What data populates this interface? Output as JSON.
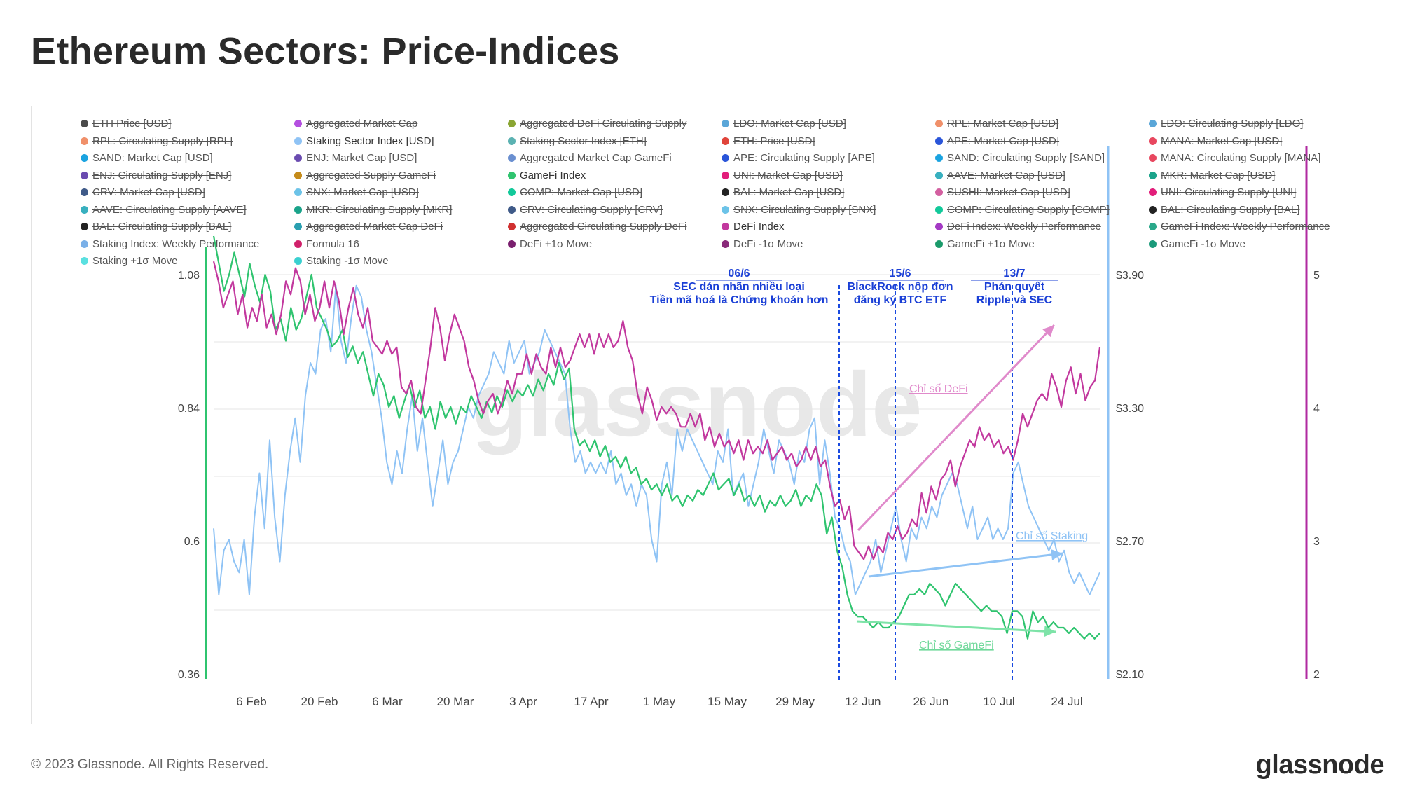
{
  "title": "Ethereum Sectors: Price-Indices",
  "footer": "© 2023 Glassnode. All Rights Reserved.",
  "brand": "glassnode",
  "watermark": "glassnode",
  "legend": [
    {
      "label": "ETH Price [USD]",
      "color": "#4a4a4a",
      "active": false
    },
    {
      "label": "Aggregated Market Cap",
      "color": "#b44fe0",
      "active": false
    },
    {
      "label": "Aggregated DeFi Circulating Supply",
      "color": "#8aa532",
      "active": false
    },
    {
      "label": "LDO: Market Cap [USD]",
      "color": "#5aa6d8",
      "active": false
    },
    {
      "label": "RPL: Market Cap [USD]",
      "color": "#f0906a",
      "active": false
    },
    {
      "label": "LDO: Circulating Supply [LDO]",
      "color": "#5aa6d8",
      "active": false
    },
    {
      "label": "RPL: Circulating Supply [RPL]",
      "color": "#f0906a",
      "active": false
    },
    {
      "label": "Staking Sector Index [USD]",
      "color": "#8fc3f5",
      "active": true
    },
    {
      "label": "Staking Sector Index [ETH]",
      "color": "#5bb2b2",
      "active": false
    },
    {
      "label": "ETH: Price [USD]",
      "color": "#e0443a",
      "active": false
    },
    {
      "label": "APE: Market Cap [USD]",
      "color": "#2a55d9",
      "active": false
    },
    {
      "label": "MANA: Market Cap [USD]",
      "color": "#e8475f",
      "active": false
    },
    {
      "label": "SAND: Market Cap [USD]",
      "color": "#1aa3e0",
      "active": false
    },
    {
      "label": "ENJ: Market Cap [USD]",
      "color": "#6a4bb0",
      "active": false
    },
    {
      "label": "Aggregated Market Cap GameFi",
      "color": "#6a8fd0",
      "active": false
    },
    {
      "label": "APE: Circulating Supply [APE]",
      "color": "#2a55d9",
      "active": false
    },
    {
      "label": "SAND: Circulating Supply [SAND]",
      "color": "#1aa3e0",
      "active": false
    },
    {
      "label": "MANA: Circulating Supply [MANA]",
      "color": "#e8475f",
      "active": false
    },
    {
      "label": "ENJ: Circulating Supply [ENJ]",
      "color": "#6a4bb0",
      "active": false
    },
    {
      "label": "Aggregated Supply GameFi",
      "color": "#c58b1a",
      "active": false
    },
    {
      "label": "GameFi Index",
      "color": "#2fc46f",
      "active": true
    },
    {
      "label": "UNI: Market Cap [USD]",
      "color": "#e21d7a",
      "active": false
    },
    {
      "label": "AAVE: Market Cap [USD]",
      "color": "#38b0bf",
      "active": false
    },
    {
      "label": "MKR: Market Cap [USD]",
      "color": "#1aa38a",
      "active": false
    },
    {
      "label": "CRV: Market Cap [USD]",
      "color": "#3f5a88",
      "active": false
    },
    {
      "label": "SNX: Market Cap [USD]",
      "color": "#6cc3e8",
      "active": false
    },
    {
      "label": "COMP: Market Cap [USD]",
      "color": "#12c99a",
      "active": false
    },
    {
      "label": "BAL: Market Cap [USD]",
      "color": "#222222",
      "active": false
    },
    {
      "label": "SUSHI: Market Cap [USD]",
      "color": "#d35fa0",
      "active": false
    },
    {
      "label": "UNI: Circulating Supply [UNI]",
      "color": "#e21d7a",
      "active": false
    },
    {
      "label": "AAVE: Circulating Supply [AAVE]",
      "color": "#38b0bf",
      "active": false
    },
    {
      "label": "MKR: Circulating Supply [MKR]",
      "color": "#1aa38a",
      "active": false
    },
    {
      "label": "CRV: Circulating Supply [CRV]",
      "color": "#3f5a88",
      "active": false
    },
    {
      "label": "SNX: Circulating Supply [SNX]",
      "color": "#6cc3e8",
      "active": false
    },
    {
      "label": "COMP: Circulating Supply [COMP]",
      "color": "#12c99a",
      "active": false
    },
    {
      "label": "BAL: Circulating Supply [BAL]",
      "color": "#222222",
      "active": false
    },
    {
      "label": "BAL: Circulating Supply [BAL]",
      "color": "#222222",
      "active": false
    },
    {
      "label": "Aggregated Market Cap DeFi",
      "color": "#2a9fb0",
      "active": false
    },
    {
      "label": "Aggregated Circulating Supply DeFi",
      "color": "#d03030",
      "active": false
    },
    {
      "label": "DeFi Index",
      "color": "#c2389e",
      "active": true
    },
    {
      "label": "DeFi Index: Weekly Performance",
      "color": "#a43ac4",
      "active": false
    },
    {
      "label": "GameFi Index: Weekly Performance",
      "color": "#2aa88a",
      "active": false
    },
    {
      "label": "Staking Index: Weekly Performance",
      "color": "#7ab0e8",
      "active": false
    },
    {
      "label": "Formula 16",
      "color": "#d0206a",
      "active": false
    },
    {
      "label": "DeFi +1σ Move",
      "color": "#7a1f6e",
      "active": false
    },
    {
      "label": "DeFi -1σ Move",
      "color": "#8a2a7a",
      "active": false
    },
    {
      "label": "GameFi +1σ Move",
      "color": "#1a9a6a",
      "active": false
    },
    {
      "label": "GameFi -1σ Move",
      "color": "#1a9a7a",
      "active": false
    },
    {
      "label": "Staking +1σ Move",
      "color": "#5ae0e0",
      "active": false
    },
    {
      "label": "Staking -1σ Move",
      "color": "#3ad0d0",
      "active": false
    }
  ],
  "chart_data": {
    "type": "line",
    "x_ticks": [
      "6 Feb",
      "20 Feb",
      "6 Mar",
      "20 Mar",
      "3 Apr",
      "17 Apr",
      "1 May",
      "15 May",
      "29 May",
      "12 Jun",
      "26 Jun",
      "10 Jul",
      "24 Jul"
    ],
    "left_axis": {
      "ticks": [
        "1.08",
        "0.84",
        "0.6",
        "0.36"
      ],
      "range": [
        0.36,
        1.08
      ]
    },
    "right_axis_1": {
      "ticks": [
        "$3.90",
        "$3.30",
        "$2.70",
        "$2.10"
      ],
      "range": [
        2.1,
        3.9
      ]
    },
    "right_axis_2": {
      "ticks": [
        "5",
        "4",
        "3",
        "2"
      ],
      "range": [
        2,
        5
      ]
    },
    "series": [
      {
        "name": "DeFi Index",
        "axis": "right_axis_2",
        "color": "#c2389e",
        "values": [
          5.1,
          4.95,
          4.75,
          4.85,
          4.95,
          4.7,
          4.85,
          4.6,
          4.75,
          4.65,
          4.85,
          4.6,
          4.7,
          4.55,
          4.7,
          4.95,
          4.85,
          5.05,
          4.95,
          4.7,
          4.85,
          4.65,
          4.75,
          4.95,
          4.75,
          4.95,
          4.8,
          4.55,
          4.75,
          4.9,
          4.7,
          4.6,
          4.75,
          4.5,
          4.45,
          4.4,
          4.5,
          4.4,
          4.45,
          4.15,
          4.1,
          4.2,
          4.0,
          3.95,
          4.2,
          4.45,
          4.75,
          4.6,
          4.35,
          4.55,
          4.7,
          4.6,
          4.5,
          4.3,
          4.2,
          4.05,
          3.95,
          4.05,
          4.1,
          3.95,
          4.05,
          4.2,
          4.1,
          4.25,
          4.25,
          4.4,
          4.25,
          4.4,
          4.3,
          4.25,
          4.45,
          4.3,
          4.45,
          4.3,
          4.35,
          4.45,
          4.55,
          4.45,
          4.55,
          4.4,
          4.55,
          4.45,
          4.55,
          4.45,
          4.5,
          4.65,
          4.45,
          4.35,
          4.1,
          3.95,
          4.15,
          4.05,
          3.9,
          4.0,
          3.95,
          4.0,
          3.95,
          3.85,
          3.85,
          3.95,
          3.85,
          3.95,
          3.75,
          3.85,
          3.7,
          3.8,
          3.7,
          3.75,
          3.65,
          3.75,
          3.6,
          3.75,
          3.65,
          3.7,
          3.65,
          3.75,
          3.6,
          3.65,
          3.7,
          3.6,
          3.65,
          3.55,
          3.6,
          3.7,
          3.6,
          3.7,
          3.55,
          3.6,
          3.4,
          3.25,
          3.3,
          3.15,
          3.25,
          2.95,
          2.9,
          2.85,
          2.95,
          2.85,
          2.95,
          2.9,
          3.05,
          3.0,
          3.1,
          3.0,
          3.05,
          3.15,
          3.1,
          3.35,
          3.2,
          3.4,
          3.3,
          3.45,
          3.5,
          3.6,
          3.4,
          3.55,
          3.65,
          3.75,
          3.7,
          3.85,
          3.75,
          3.8,
          3.7,
          3.75,
          3.65,
          3.7,
          3.6,
          3.75,
          3.95,
          3.85,
          3.95,
          4.05,
          4.1,
          4.05,
          4.25,
          4.15,
          4.0,
          4.2,
          4.3,
          4.1,
          4.25,
          4.05,
          4.15,
          4.2,
          4.45
        ]
      },
      {
        "name": "GameFi Index",
        "axis": "left_axis",
        "color": "#2fc46f",
        "values": [
          1.15,
          1.1,
          1.05,
          1.08,
          1.12,
          1.08,
          1.04,
          1.1,
          1.06,
          1.03,
          1.08,
          1.05,
          0.98,
          1.0,
          0.96,
          1.02,
          0.98,
          1.0,
          1.04,
          1.08,
          1.02,
          1.0,
          0.98,
          0.95,
          0.96,
          0.98,
          0.93,
          0.95,
          0.92,
          0.94,
          0.9,
          0.86,
          0.9,
          0.88,
          0.84,
          0.86,
          0.82,
          0.85,
          0.88,
          0.84,
          0.87,
          0.82,
          0.84,
          0.8,
          0.85,
          0.82,
          0.84,
          0.81,
          0.84,
          0.83,
          0.86,
          0.84,
          0.82,
          0.85,
          0.83,
          0.86,
          0.84,
          0.87,
          0.85,
          0.87,
          0.86,
          0.88,
          0.86,
          0.89,
          0.87,
          0.9,
          0.88,
          0.92,
          0.89,
          0.91,
          0.8,
          0.77,
          0.78,
          0.76,
          0.78,
          0.75,
          0.77,
          0.74,
          0.75,
          0.73,
          0.75,
          0.72,
          0.73,
          0.7,
          0.71,
          0.69,
          0.7,
          0.68,
          0.7,
          0.67,
          0.68,
          0.66,
          0.68,
          0.67,
          0.69,
          0.68,
          0.7,
          0.72,
          0.69,
          0.7,
          0.71,
          0.68,
          0.7,
          0.67,
          0.68,
          0.66,
          0.68,
          0.65,
          0.67,
          0.66,
          0.68,
          0.66,
          0.67,
          0.69,
          0.66,
          0.68,
          0.67,
          0.7,
          0.68,
          0.61,
          0.64,
          0.58,
          0.55,
          0.5,
          0.47,
          0.46,
          0.46,
          0.45,
          0.44,
          0.45,
          0.44,
          0.44,
          0.45,
          0.46,
          0.48,
          0.5,
          0.5,
          0.51,
          0.5,
          0.52,
          0.51,
          0.5,
          0.48,
          0.5,
          0.52,
          0.51,
          0.5,
          0.49,
          0.48,
          0.47,
          0.48,
          0.47,
          0.47,
          0.46,
          0.43,
          0.47,
          0.47,
          0.46,
          0.42,
          0.47,
          0.45,
          0.46,
          0.44,
          0.45,
          0.44,
          0.44,
          0.43,
          0.44,
          0.43,
          0.42,
          0.43,
          0.42,
          0.43
        ]
      },
      {
        "name": "Staking Sector Index [USD]",
        "axis": "right_axis_1",
        "color": "#8fc3f5",
        "values": [
          2.75,
          2.45,
          2.65,
          2.7,
          2.6,
          2.55,
          2.7,
          2.45,
          2.8,
          3.0,
          2.75,
          3.15,
          2.8,
          2.6,
          2.9,
          3.1,
          3.25,
          3.05,
          3.35,
          3.5,
          3.45,
          3.65,
          3.7,
          3.55,
          3.85,
          3.6,
          3.5,
          3.7,
          3.85,
          3.8,
          3.65,
          3.55,
          3.4,
          3.25,
          3.05,
          2.95,
          3.1,
          3.0,
          3.2,
          3.35,
          3.1,
          3.25,
          3.05,
          2.85,
          3.0,
          3.15,
          2.95,
          3.05,
          3.1,
          3.2,
          3.3,
          3.25,
          3.35,
          3.4,
          3.45,
          3.55,
          3.5,
          3.45,
          3.6,
          3.5,
          3.55,
          3.6,
          3.45,
          3.5,
          3.55,
          3.65,
          3.6,
          3.55,
          3.5,
          3.45,
          3.2,
          3.05,
          3.1,
          3.0,
          3.05,
          3.0,
          3.05,
          3.0,
          3.1,
          2.95,
          3.0,
          2.9,
          2.95,
          2.85,
          2.95,
          2.9,
          2.7,
          2.6,
          2.95,
          3.05,
          2.9,
          3.2,
          3.1,
          3.2,
          3.15,
          3.1,
          3.05,
          3.0,
          2.95,
          3.1,
          3.05,
          3.2,
          2.9,
          2.95,
          3.0,
          2.85,
          2.95,
          3.05,
          3.2,
          3.1,
          3.0,
          3.15,
          3.1,
          3.05,
          2.95,
          3.1,
          3.05,
          3.2,
          3.25,
          2.95,
          3.15,
          3.0,
          2.8,
          2.75,
          2.65,
          2.6,
          2.45,
          2.5,
          2.55,
          2.6,
          2.7,
          2.55,
          2.65,
          2.75,
          2.85,
          2.7,
          2.6,
          2.75,
          2.7,
          2.8,
          2.75,
          2.85,
          2.8,
          2.9,
          2.95,
          3.0,
          2.95,
          2.85,
          2.75,
          2.85,
          2.7,
          2.75,
          2.8,
          2.7,
          2.75,
          2.7,
          2.75,
          3.0,
          3.05,
          2.95,
          2.85,
          2.8,
          2.75,
          2.7,
          2.65,
          2.7,
          2.6,
          2.65,
          2.55,
          2.5,
          2.55,
          2.5,
          2.45,
          2.5,
          2.55
        ]
      }
    ],
    "events": [
      {
        "date": "06/6",
        "line1": "SEC dán nhãn nhiều loại",
        "line2": "Tiền mã hoá là Chứng khoán hơn"
      },
      {
        "date": "15/6",
        "line1": "BlackRock nộp đơn",
        "line2": "đăng ký BTC ETF"
      },
      {
        "date": "13/7",
        "line1": "Phán quyết",
        "line2": "Ripple và SEC"
      }
    ],
    "annotations": {
      "defi": "Chỉ số DeFi",
      "staking": "Chỉ số Staking",
      "gamefi": "Chỉ số GameFi"
    },
    "grid": true
  }
}
